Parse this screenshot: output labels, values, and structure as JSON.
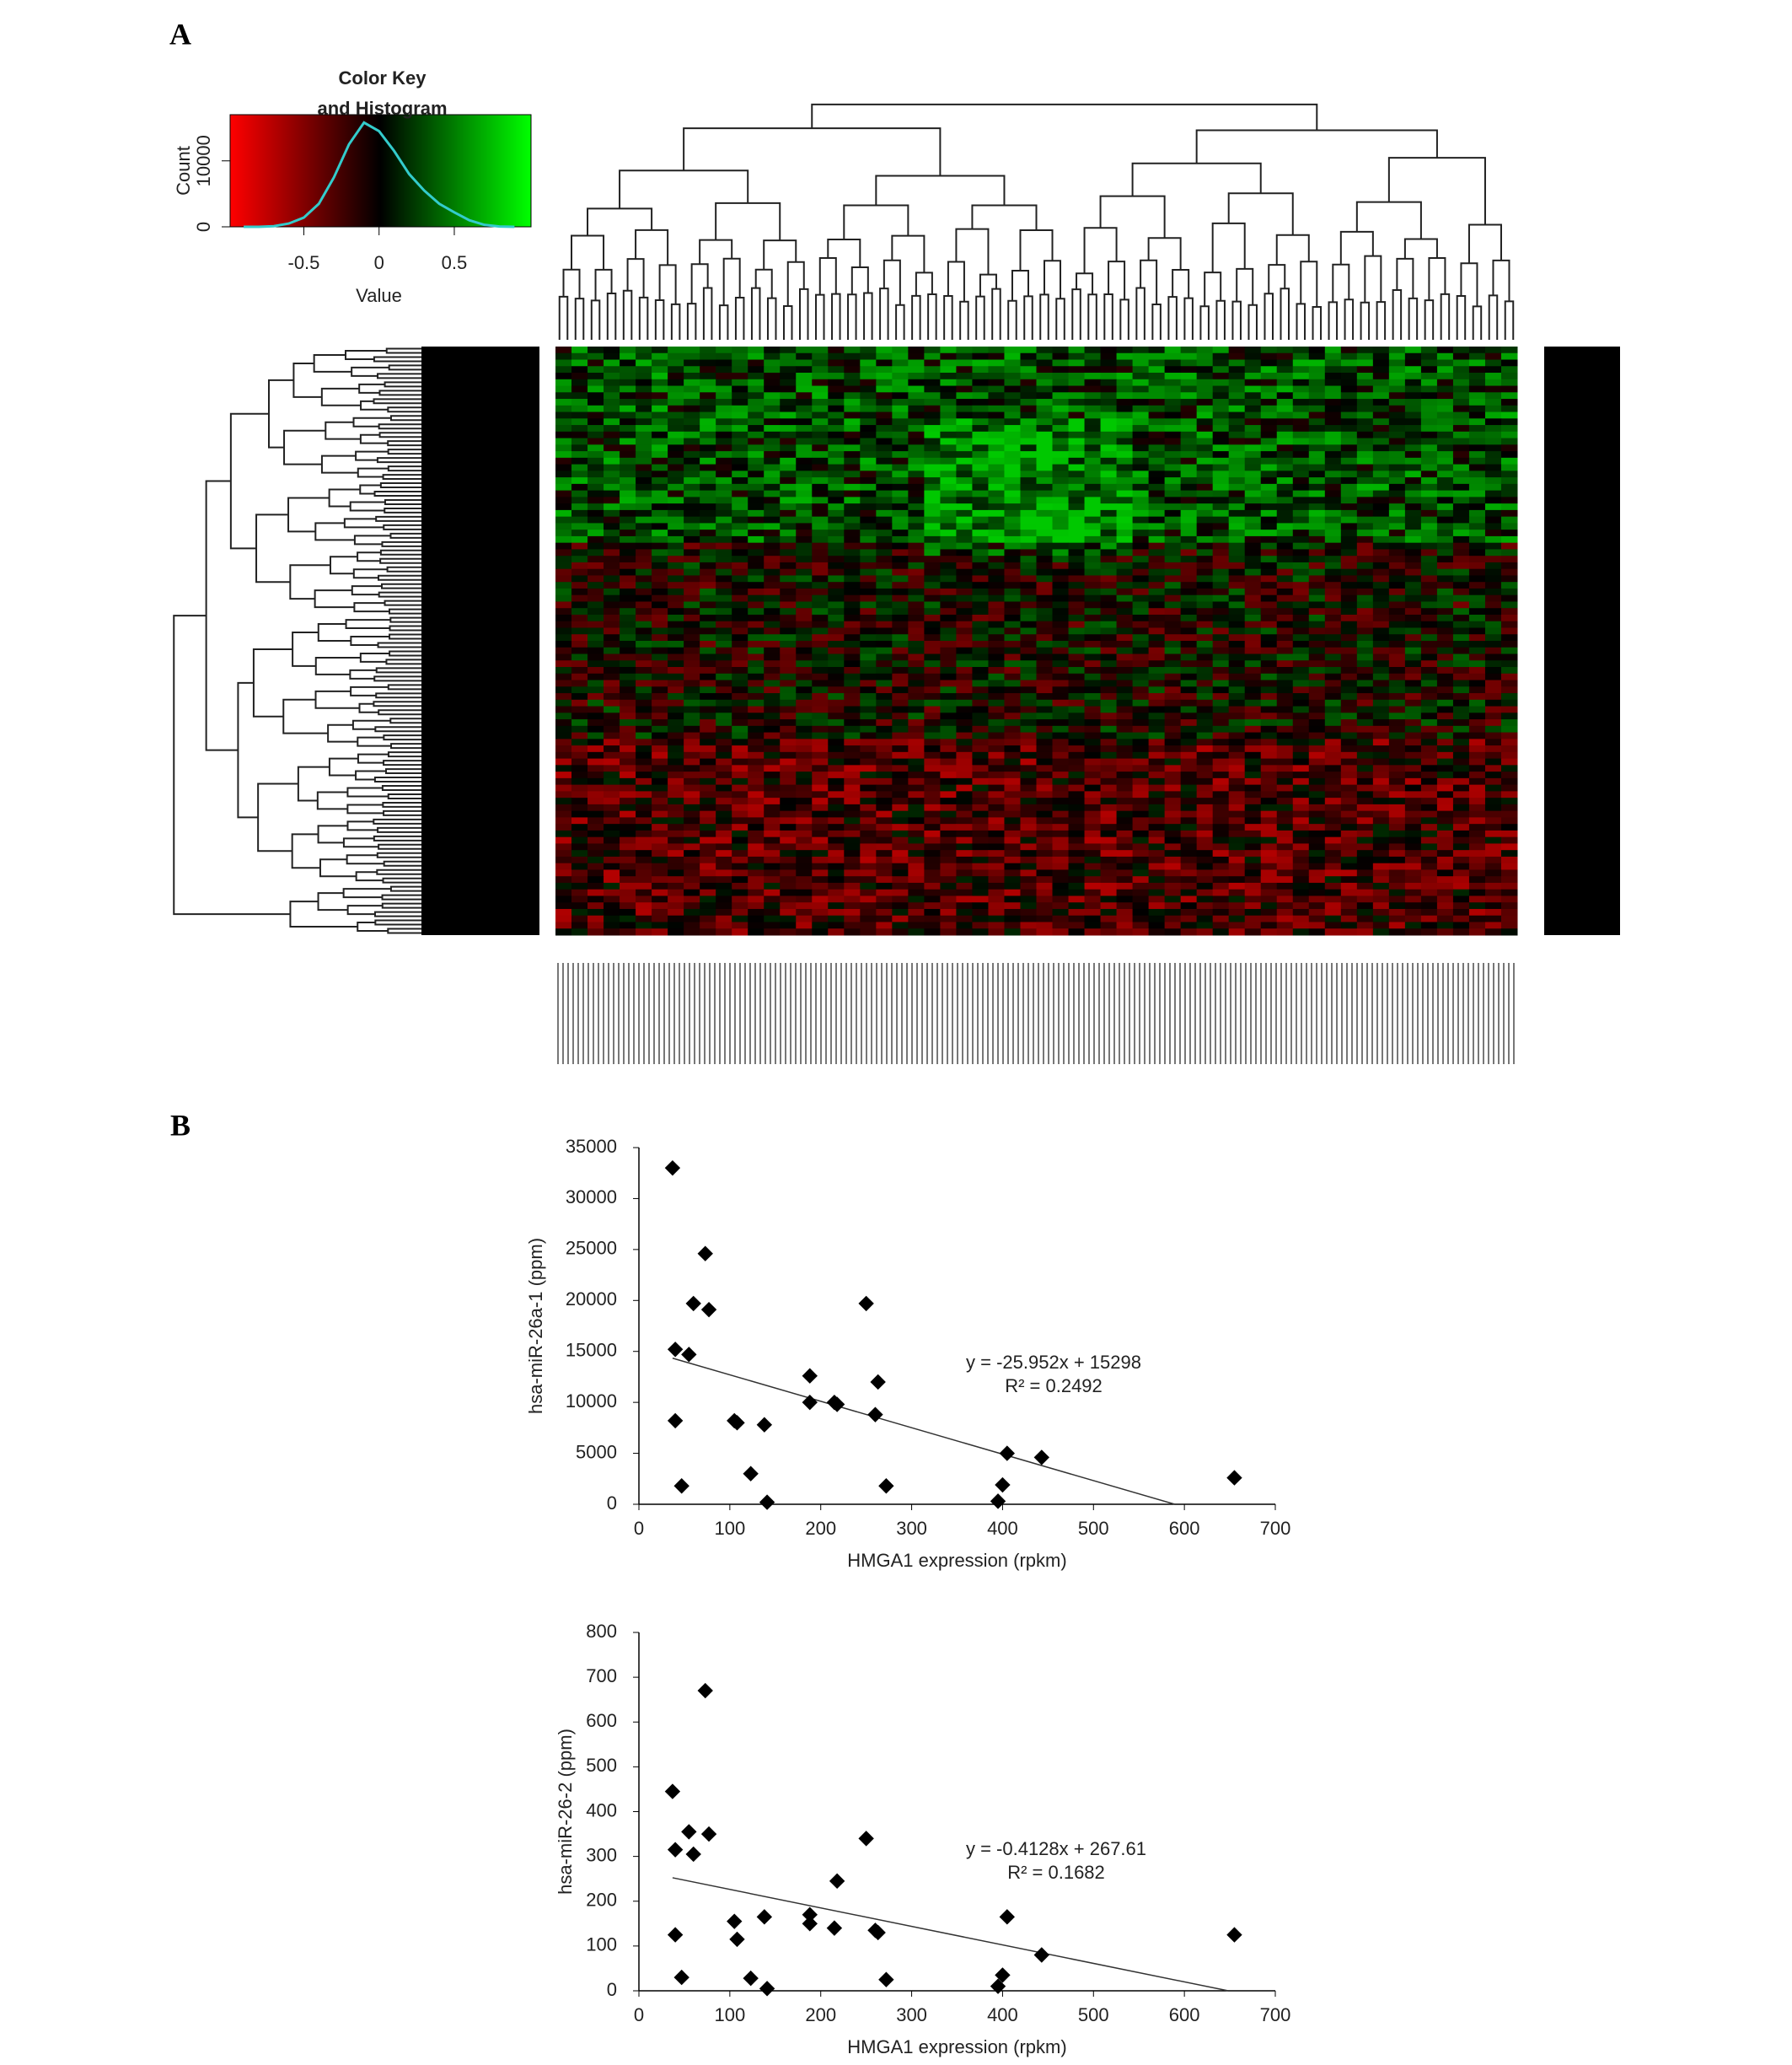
{
  "panel_labels": [
    "A",
    "B"
  ],
  "chart_data": [
    {
      "type": "line",
      "title": [
        "Color Key",
        "and Histogram"
      ],
      "xlabel": "Value",
      "ylabel": "Count",
      "colormap": [
        "#ff0000",
        "#000000",
        "#00ff00"
      ],
      "color": "#33cccc",
      "x": [
        -0.9,
        -0.8,
        -0.7,
        -0.6,
        -0.5,
        -0.4,
        -0.3,
        -0.2,
        -0.1,
        0,
        0.1,
        0.2,
        0.3,
        0.4,
        0.5,
        0.6,
        0.7,
        0.8,
        0.9
      ],
      "values": [
        0,
        0,
        100,
        500,
        1400,
        3500,
        7500,
        12500,
        15800,
        14500,
        11500,
        8000,
        5500,
        3500,
        2200,
        1000,
        300,
        50,
        0
      ],
      "xlim": [
        -0.99,
        1.01
      ],
      "xticks": [
        -0.5,
        0,
        0.5
      ],
      "ylim": [
        0,
        17000
      ],
      "yticks": [
        0,
        10000
      ]
    },
    {
      "type": "scatter",
      "xlabel": "HMGA1 expression (rpkm)",
      "ylabel": "hsa-miR-26a-1 (ppm)",
      "color": "#000000",
      "x": [
        37,
        40,
        40,
        47,
        55,
        60,
        73,
        77,
        105,
        108,
        123,
        138,
        141,
        188,
        188,
        215,
        218,
        250,
        260,
        263,
        272,
        395,
        400,
        405,
        443,
        655
      ],
      "values": [
        33000,
        15200,
        8200,
        1800,
        14700,
        19700,
        24600,
        19100,
        8200,
        8000,
        3000,
        7800,
        200,
        12600,
        10000,
        10000,
        9800,
        19700,
        8800,
        12000,
        1800,
        300,
        1900,
        5000,
        4600,
        2600
      ],
      "xlim": [
        0,
        700
      ],
      "xticks": [
        0,
        100,
        200,
        300,
        400,
        500,
        600,
        700
      ],
      "ylim": [
        0,
        35000
      ],
      "yticks": [
        0,
        5000,
        10000,
        15000,
        20000,
        25000,
        30000,
        35000
      ],
      "trendline": {
        "equation": "y = -25.952x + 15298",
        "r2": "R² = 0.2492",
        "slope": -25.952,
        "intercept": 15298
      }
    },
    {
      "type": "scatter",
      "xlabel": "HMGA1 expression (rpkm)",
      "ylabel": "hsa-miR-26-2 (ppm)",
      "color": "#000000",
      "x": [
        37,
        40,
        40,
        47,
        55,
        60,
        73,
        77,
        105,
        108,
        123,
        138,
        141,
        188,
        188,
        215,
        218,
        250,
        260,
        263,
        272,
        395,
        400,
        405,
        443,
        655
      ],
      "values": [
        445,
        315,
        125,
        30,
        355,
        305,
        670,
        350,
        155,
        115,
        28,
        165,
        5,
        170,
        150,
        140,
        245,
        340,
        135,
        130,
        25,
        10,
        35,
        165,
        80,
        125
      ],
      "xlim": [
        0,
        700
      ],
      "xticks": [
        0,
        100,
        200,
        300,
        400,
        500,
        600,
        700
      ],
      "ylim": [
        0,
        800
      ],
      "yticks": [
        0,
        100,
        200,
        300,
        400,
        500,
        600,
        700,
        800
      ],
      "trendline": {
        "equation": "y = -0.4128x + 267.61",
        "r2": "R² = 0.1682",
        "slope": -0.4128,
        "intercept": 267.61
      }
    }
  ]
}
